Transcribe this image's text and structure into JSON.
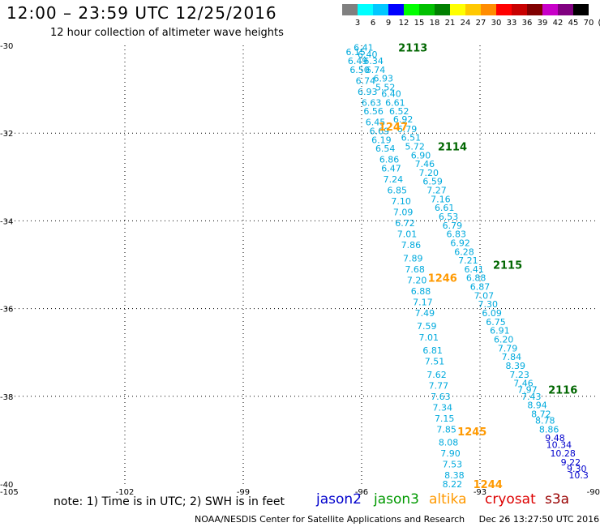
{
  "header": {
    "title": "12:00 – 23:59 UTC 12/25/2016",
    "subtitle": "12 hour collection of altimeter wave heights"
  },
  "colorbar": {
    "colors": [
      "#808080",
      "#00ffff",
      "#00c8ff",
      "#0000ff",
      "#00ff00",
      "#00c000",
      "#008000",
      "#ffff00",
      "#ffc800",
      "#ff8c00",
      "#ff0000",
      "#c80000",
      "#800000",
      "#c800c8",
      "#800080",
      "#000000"
    ],
    "labels": [
      "3",
      "6",
      "9",
      "12",
      "15",
      "18",
      "21",
      "24",
      "27",
      "30",
      "33",
      "36",
      "39",
      "42",
      "45",
      "70",
      "(ft)"
    ]
  },
  "footer": {
    "note": "note: 1) Time is in UTC; 2) SWH is in feet",
    "credit": "NOAA/NESDIS Center for Satellite Applications and Research     Dec 26 13:27:50 UTC 2016",
    "satellites": [
      {
        "name": "jason2",
        "color": "#0000cc"
      },
      {
        "name": "jason3",
        "color": "#009900"
      },
      {
        "name": "altika",
        "color": "#ff9900"
      },
      {
        "name": "cryosat",
        "color": "#dd0000"
      },
      {
        "name": "s3a",
        "color": "#990000"
      }
    ]
  },
  "chart_data": {
    "type": "scatter",
    "title": "12:00 – 23:59 UTC 12/25/2016",
    "xlim": [
      -105,
      -90
    ],
    "ylim": [
      -40,
      -30
    ],
    "grid": true,
    "x_ticks": [
      "-105",
      "-102",
      "-99",
      "-96",
      "-93",
      "-90"
    ],
    "y_ticks": [
      "-30",
      "-32",
      "-34",
      "-36",
      "-38",
      "-40"
    ],
    "tracks": [
      {
        "pass_label": "2113",
        "label_color": "#006600",
        "points": [
          {
            "lon": -95.95,
            "lat": -30.05,
            "v": "6.41",
            "c": "#00aadd"
          },
          {
            "lon": -96.15,
            "lat": -30.15,
            "v": "6.15",
            "c": "#00aadd"
          },
          {
            "lon": -95.85,
            "lat": -30.2,
            "v": "6.40",
            "c": "#00aadd"
          },
          {
            "lon": -96.1,
            "lat": -30.35,
            "v": "6.49",
            "c": "#00aadd"
          },
          {
            "lon": -95.7,
            "lat": -30.35,
            "v": "6.34",
            "c": "#00aadd"
          },
          {
            "lon": -96.05,
            "lat": -30.55,
            "v": "6.50",
            "c": "#00aadd"
          },
          {
            "lon": -95.65,
            "lat": -30.55,
            "v": "6.74",
            "c": "#00aadd"
          },
          {
            "lon": -95.45,
            "lat": -30.75,
            "v": "6.93",
            "c": "#00aadd"
          },
          {
            "lon": -95.9,
            "lat": -30.8,
            "v": "6.74",
            "c": "#00aadd"
          },
          {
            "lon": -95.4,
            "lat": -30.95,
            "v": "5.52",
            "c": "#00aadd"
          },
          {
            "lon": -95.85,
            "lat": -31.05,
            "v": "6.93",
            "c": "#00aadd"
          },
          {
            "lon": -95.25,
            "lat": -31.1,
            "v": "6.40",
            "c": "#00aadd"
          },
          {
            "lon": -95.75,
            "lat": -31.3,
            "v": "6.63",
            "c": "#00aadd"
          },
          {
            "lon": -95.15,
            "lat": -31.3,
            "v": "6.61",
            "c": "#00aadd"
          },
          {
            "lon": -95.7,
            "lat": -31.5,
            "v": "6.56",
            "c": "#00aadd"
          },
          {
            "lon": -95.05,
            "lat": -31.5,
            "v": "6.52",
            "c": "#00aadd"
          },
          {
            "lon": -94.95,
            "lat": -31.68,
            "v": "6.92",
            "c": "#00aadd"
          },
          {
            "lon": -95.65,
            "lat": -31.75,
            "v": "6.45",
            "c": "#00aadd"
          },
          {
            "lon": -94.85,
            "lat": -31.9,
            "v": "6.79",
            "c": "#00aadd"
          },
          {
            "lon": -95.55,
            "lat": -31.95,
            "v": "6.69",
            "c": "#00aadd"
          },
          {
            "lon": -94.75,
            "lat": -32.1,
            "v": "6.51",
            "c": "#00aadd"
          },
          {
            "lon": -95.5,
            "lat": -32.15,
            "v": "6.19",
            "c": "#00aadd"
          },
          {
            "lon": -94.65,
            "lat": -32.3,
            "v": "5.72",
            "c": "#00aadd"
          },
          {
            "lon": -95.4,
            "lat": -32.35,
            "v": "6.54",
            "c": "#00aadd"
          },
          {
            "lon": -94.5,
            "lat": -32.5,
            "v": "6.90",
            "c": "#00aadd"
          },
          {
            "lon": -95.3,
            "lat": -32.6,
            "v": "6.86",
            "c": "#00aadd"
          },
          {
            "lon": -94.4,
            "lat": -32.7,
            "v": "7.46",
            "c": "#00aadd"
          },
          {
            "lon": -95.25,
            "lat": -32.8,
            "v": "6.47",
            "c": "#00aadd"
          },
          {
            "lon": -94.3,
            "lat": -32.9,
            "v": "7.20",
            "c": "#00aadd"
          },
          {
            "lon": -95.2,
            "lat": -33.05,
            "v": "7.24",
            "c": "#00aadd"
          },
          {
            "lon": -94.2,
            "lat": -33.1,
            "v": "6.59",
            "c": "#00aadd"
          },
          {
            "lon": -95.1,
            "lat": -33.3,
            "v": "6.85",
            "c": "#00aadd"
          },
          {
            "lon": -94.1,
            "lat": -33.3,
            "v": "7.27",
            "c": "#00aadd"
          },
          {
            "lon": -94.0,
            "lat": -33.5,
            "v": "7.16",
            "c": "#00aadd"
          },
          {
            "lon": -95.0,
            "lat": -33.55,
            "v": "7.10",
            "c": "#00aadd"
          },
          {
            "lon": -93.9,
            "lat": -33.7,
            "v": "6.61",
            "c": "#00aadd"
          },
          {
            "lon": -94.95,
            "lat": -33.8,
            "v": "7.09",
            "c": "#00aadd"
          },
          {
            "lon": -93.8,
            "lat": -33.9,
            "v": "6.53",
            "c": "#00aadd"
          },
          {
            "lon": -94.9,
            "lat": -34.05,
            "v": "6.72",
            "c": "#00aadd"
          },
          {
            "lon": -93.7,
            "lat": -34.1,
            "v": "6.79",
            "c": "#00aadd"
          },
          {
            "lon": -93.6,
            "lat": -34.3,
            "v": "6.83",
            "c": "#00aadd"
          },
          {
            "lon": -94.85,
            "lat": -34.3,
            "v": "7.01",
            "c": "#00aadd"
          },
          {
            "lon": -93.5,
            "lat": -34.5,
            "v": "6.92",
            "c": "#00aadd"
          },
          {
            "lon": -94.75,
            "lat": -34.55,
            "v": "7.86",
            "c": "#00aadd"
          },
          {
            "lon": -93.4,
            "lat": -34.7,
            "v": "6.28",
            "c": "#00aadd"
          },
          {
            "lon": -94.7,
            "lat": -34.85,
            "v": "7.89",
            "c": "#00aadd"
          },
          {
            "lon": -93.3,
            "lat": -34.9,
            "v": "7.21",
            "c": "#00aadd"
          },
          {
            "lon": -93.15,
            "lat": -35.1,
            "v": "6.41",
            "c": "#00aadd"
          },
          {
            "lon": -94.65,
            "lat": -35.1,
            "v": "7.68",
            "c": "#00aadd"
          },
          {
            "lon": -93.1,
            "lat": -35.3,
            "v": "6.88",
            "c": "#00aadd"
          },
          {
            "lon": -94.6,
            "lat": -35.35,
            "v": "7.20",
            "c": "#00aadd"
          },
          {
            "lon": -93.0,
            "lat": -35.5,
            "v": "6.87",
            "c": "#00aadd"
          },
          {
            "lon": -94.5,
            "lat": -35.6,
            "v": "6.88",
            "c": "#00aadd"
          },
          {
            "lon": -92.9,
            "lat": -35.7,
            "v": "7.07",
            "c": "#00aadd"
          },
          {
            "lon": -94.45,
            "lat": -35.85,
            "v": "7.17",
            "c": "#00aadd"
          },
          {
            "lon": -92.8,
            "lat": -35.9,
            "v": "7.30",
            "c": "#00aadd"
          },
          {
            "lon": -92.7,
            "lat": -36.1,
            "v": "6.09",
            "c": "#00aadd"
          },
          {
            "lon": -94.4,
            "lat": -36.1,
            "v": "7.49",
            "c": "#00aadd"
          },
          {
            "lon": -92.6,
            "lat": -36.3,
            "v": "6.75",
            "c": "#00aadd"
          },
          {
            "lon": -94.35,
            "lat": -36.4,
            "v": "7.59",
            "c": "#00aadd"
          },
          {
            "lon": -92.5,
            "lat": -36.5,
            "v": "6.91",
            "c": "#00aadd"
          },
          {
            "lon": -94.3,
            "lat": -36.65,
            "v": "7.01",
            "c": "#00aadd"
          },
          {
            "lon": -92.4,
            "lat": -36.7,
            "v": "6.20",
            "c": "#00aadd"
          },
          {
            "lon": -92.3,
            "lat": -36.9,
            "v": "7.79",
            "c": "#00aadd"
          },
          {
            "lon": -94.2,
            "lat": -36.95,
            "v": "6.81",
            "c": "#00aadd"
          },
          {
            "lon": -92.2,
            "lat": -37.1,
            "v": "7.84",
            "c": "#00aadd"
          },
          {
            "lon": -94.15,
            "lat": -37.2,
            "v": "7.51",
            "c": "#00aadd"
          },
          {
            "lon": -92.1,
            "lat": -37.3,
            "v": "8.39",
            "c": "#00aadd"
          },
          {
            "lon": -94.1,
            "lat": -37.5,
            "v": "7.62",
            "c": "#00aadd"
          },
          {
            "lon": -92.0,
            "lat": -37.5,
            "v": "7.23",
            "c": "#00aadd"
          },
          {
            "lon": -91.9,
            "lat": -37.7,
            "v": "7.46",
            "c": "#00aadd"
          },
          {
            "lon": -94.05,
            "lat": -37.75,
            "v": "7.77",
            "c": "#00aadd"
          },
          {
            "lon": -91.8,
            "lat": -37.85,
            "v": "7.97",
            "c": "#00aadd"
          },
          {
            "lon": -94.0,
            "lat": -38.0,
            "v": "7.63",
            "c": "#00aadd"
          },
          {
            "lon": -91.7,
            "lat": -38.0,
            "v": "7.43",
            "c": "#00aadd"
          },
          {
            "lon": -91.55,
            "lat": -38.2,
            "v": "8.94",
            "c": "#00aadd"
          },
          {
            "lon": -93.95,
            "lat": -38.25,
            "v": "7.34",
            "c": "#00aadd"
          },
          {
            "lon": -91.45,
            "lat": -38.4,
            "v": "8.72",
            "c": "#00aadd"
          },
          {
            "lon": -93.9,
            "lat": -38.5,
            "v": "7.15",
            "c": "#00aadd"
          },
          {
            "lon": -91.35,
            "lat": -38.55,
            "v": "8.78",
            "c": "#00aadd"
          },
          {
            "lon": -91.25,
            "lat": -38.75,
            "v": "8.86",
            "c": "#00aadd"
          },
          {
            "lon": -93.85,
            "lat": -38.75,
            "v": "7.85",
            "c": "#00aadd"
          },
          {
            "lon": -91.1,
            "lat": -38.95,
            "v": "9.48",
            "c": "#0000cc"
          },
          {
            "lon": -93.8,
            "lat": -39.05,
            "v": "8.08",
            "c": "#00aadd"
          },
          {
            "lon": -91.0,
            "lat": -39.1,
            "v": "10.34",
            "c": "#0000cc"
          },
          {
            "lon": -90.9,
            "lat": -39.3,
            "v": "10.28",
            "c": "#0000cc"
          },
          {
            "lon": -93.75,
            "lat": -39.3,
            "v": "7.90",
            "c": "#00aadd"
          },
          {
            "lon": -90.7,
            "lat": -39.5,
            "v": "9.22",
            "c": "#0000cc"
          },
          {
            "lon": -93.7,
            "lat": -39.55,
            "v": "7.53",
            "c": "#00aadd"
          },
          {
            "lon": -90.55,
            "lat": -39.65,
            "v": "9.30",
            "c": "#0000cc"
          },
          {
            "lon": -90.5,
            "lat": -39.8,
            "v": "10.3",
            "c": "#0000cc"
          },
          {
            "lon": -93.65,
            "lat": -39.8,
            "v": "8.38",
            "c": "#00aadd"
          },
          {
            "lon": -93.7,
            "lat": -40.0,
            "v": "8.22",
            "c": "#00aadd"
          }
        ]
      }
    ],
    "pass_labels": [
      {
        "text": "2113",
        "lon": -94.7,
        "lat": -30.05,
        "color": "#006600"
      },
      {
        "text": "1247",
        "lon": -95.2,
        "lat": -31.85,
        "color": "#ff9900"
      },
      {
        "text": "2114",
        "lon": -93.7,
        "lat": -32.3,
        "color": "#006600"
      },
      {
        "text": "2115",
        "lon": -92.3,
        "lat": -35.0,
        "color": "#006600"
      },
      {
        "text": "1246",
        "lon": -93.95,
        "lat": -35.3,
        "color": "#ff9900"
      },
      {
        "text": "2116",
        "lon": -90.9,
        "lat": -37.85,
        "color": "#006600"
      },
      {
        "text": "1245",
        "lon": -93.2,
        "lat": -38.8,
        "color": "#ff9900"
      },
      {
        "text": "1244",
        "lon": -92.8,
        "lat": -40.0,
        "color": "#ff9900"
      }
    ]
  }
}
